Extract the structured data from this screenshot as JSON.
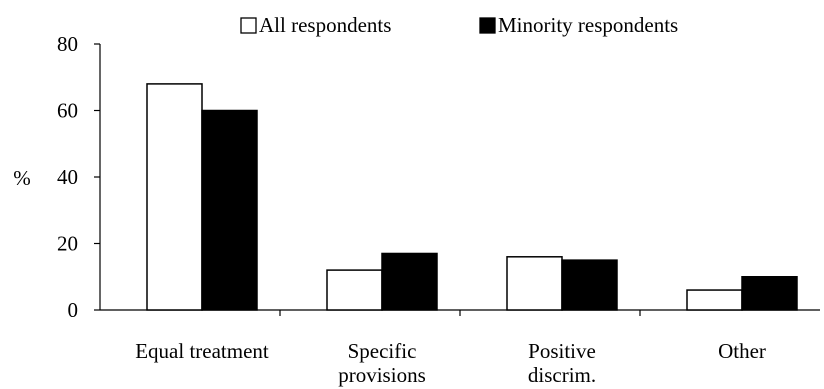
{
  "chart_data": {
    "type": "bar",
    "title": "",
    "xlabel": "",
    "ylabel": "%",
    "ylim": [
      0,
      80
    ],
    "yticks": [
      0,
      20,
      40,
      60,
      80
    ],
    "grid": false,
    "legend": "top",
    "categories": [
      "Equal treatment",
      "Specific provisions",
      "Positive discrim.",
      "Other"
    ],
    "series": [
      {
        "name": "All respondents",
        "values": [
          68,
          12,
          16,
          6
        ],
        "color": "#ffffff"
      },
      {
        "name": "Minority respondents",
        "values": [
          60,
          17,
          15,
          10
        ],
        "color": "#000000"
      }
    ]
  }
}
